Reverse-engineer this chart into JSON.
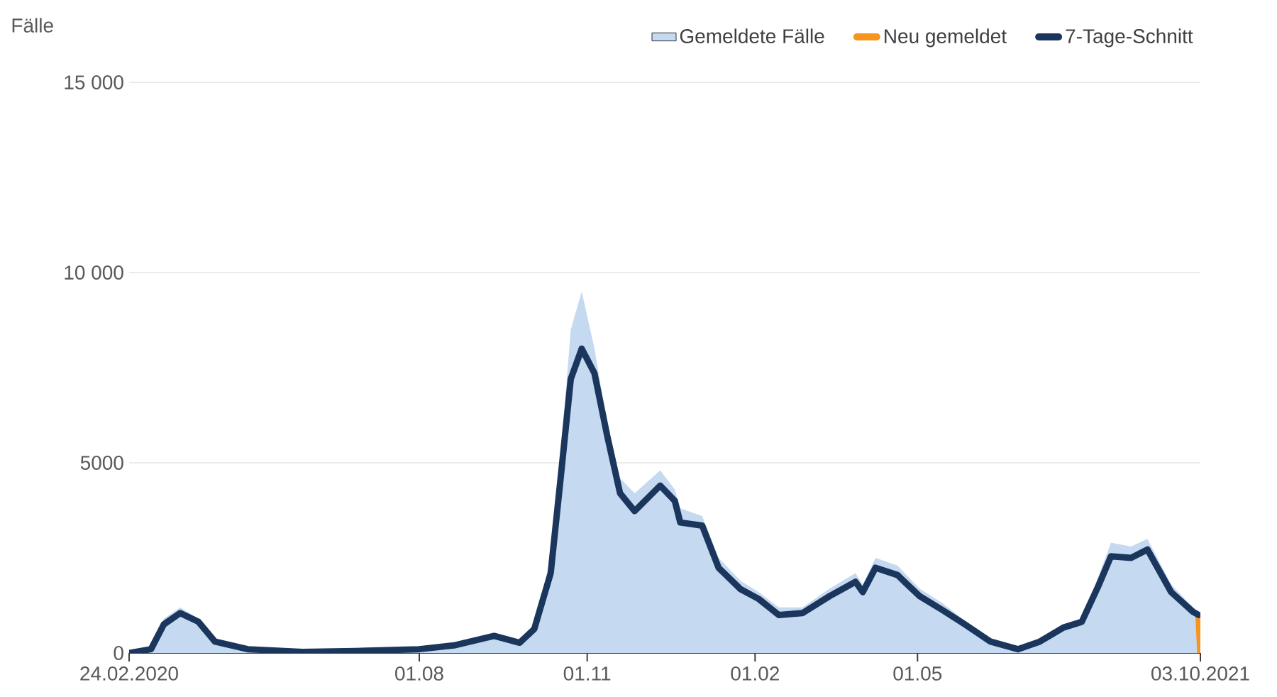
{
  "chart_data": {
    "type": "line",
    "ylabel": "Fälle",
    "xlim": [
      "2020-02-24",
      "2021-10-03"
    ],
    "xticks": [
      {
        "value": "2020-02-24",
        "label": "24.02.2020"
      },
      {
        "value": "2020-08-01",
        "label": "01.08"
      },
      {
        "value": "2020-11-01",
        "label": "01.11"
      },
      {
        "value": "2021-02-01",
        "label": "01.02"
      },
      {
        "value": "2021-05-01",
        "label": "01.05"
      },
      {
        "value": "2021-10-03",
        "label": "03.10.2021"
      }
    ],
    "ylim": [
      0,
      15000
    ],
    "yticks": [
      0,
      5000,
      {
        "value": 10000,
        "label": "10 000"
      },
      {
        "value": 15000,
        "label": "15 000"
      }
    ],
    "grid": "y",
    "legend": "top right",
    "x": [
      "2020-02-24",
      "2020-03-07",
      "2020-03-14",
      "2020-03-23",
      "2020-04-02",
      "2020-04-11",
      "2020-04-29",
      "2020-05-29",
      "2020-06-27",
      "2020-08-01",
      "2020-08-20",
      "2020-09-11",
      "2020-09-25",
      "2020-10-03",
      "2020-10-12",
      "2020-10-18",
      "2020-10-23",
      "2020-10-29",
      "2020-11-05",
      "2020-11-12",
      "2020-11-19",
      "2020-11-27",
      "2020-12-11",
      "2020-12-19",
      "2020-12-22",
      "2021-01-03",
      "2021-01-12",
      "2021-01-24",
      "2021-02-03",
      "2021-02-14",
      "2021-02-27",
      "2021-03-14",
      "2021-03-28",
      "2021-04-01",
      "2021-04-08",
      "2021-04-20",
      "2021-05-02",
      "2021-05-15",
      "2021-05-27",
      "2021-06-10",
      "2021-06-25",
      "2021-07-07",
      "2021-07-20",
      "2021-07-30",
      "2021-08-08",
      "2021-08-15",
      "2021-08-26",
      "2021-09-04",
      "2021-09-17",
      "2021-09-29",
      "2021-10-02"
    ],
    "series": [
      {
        "name": "Gemeldete Fälle",
        "type": "area",
        "color": "#c5d9f0",
        "values": [
          0,
          150,
          900,
          1200,
          900,
          350,
          100,
          40,
          60,
          120,
          230,
          500,
          300,
          700,
          2500,
          5500,
          8500,
          9500,
          8000,
          6000,
          4600,
          4200,
          4800,
          4300,
          3800,
          3600,
          2500,
          1900,
          1600,
          1200,
          1200,
          1700,
          2100,
          1800,
          2500,
          2300,
          1700,
          1300,
          850,
          350,
          120,
          350,
          750,
          900,
          2000,
          2900,
          2800,
          3000,
          1800,
          1200,
          1100
        ]
      },
      {
        "name": "Neu gemeldet",
        "color": "#f7941d",
        "x": [
          "2021-10-02",
          "2021-10-03"
        ],
        "values": [
          1000,
          0
        ]
      },
      {
        "name": "7-Tage-Schnitt",
        "color": "#1b365d",
        "values": [
          0,
          100,
          750,
          1050,
          820,
          300,
          100,
          30,
          50,
          100,
          200,
          450,
          270,
          630,
          2100,
          4850,
          7200,
          8000,
          7350,
          5700,
          4200,
          3730,
          4400,
          4000,
          3430,
          3350,
          2240,
          1680,
          1420,
          1000,
          1050,
          1500,
          1870,
          1600,
          2240,
          2050,
          1500,
          1120,
          750,
          300,
          100,
          300,
          670,
          820,
          1750,
          2540,
          2500,
          2720,
          1600,
          1080,
          1000
        ]
      }
    ]
  }
}
